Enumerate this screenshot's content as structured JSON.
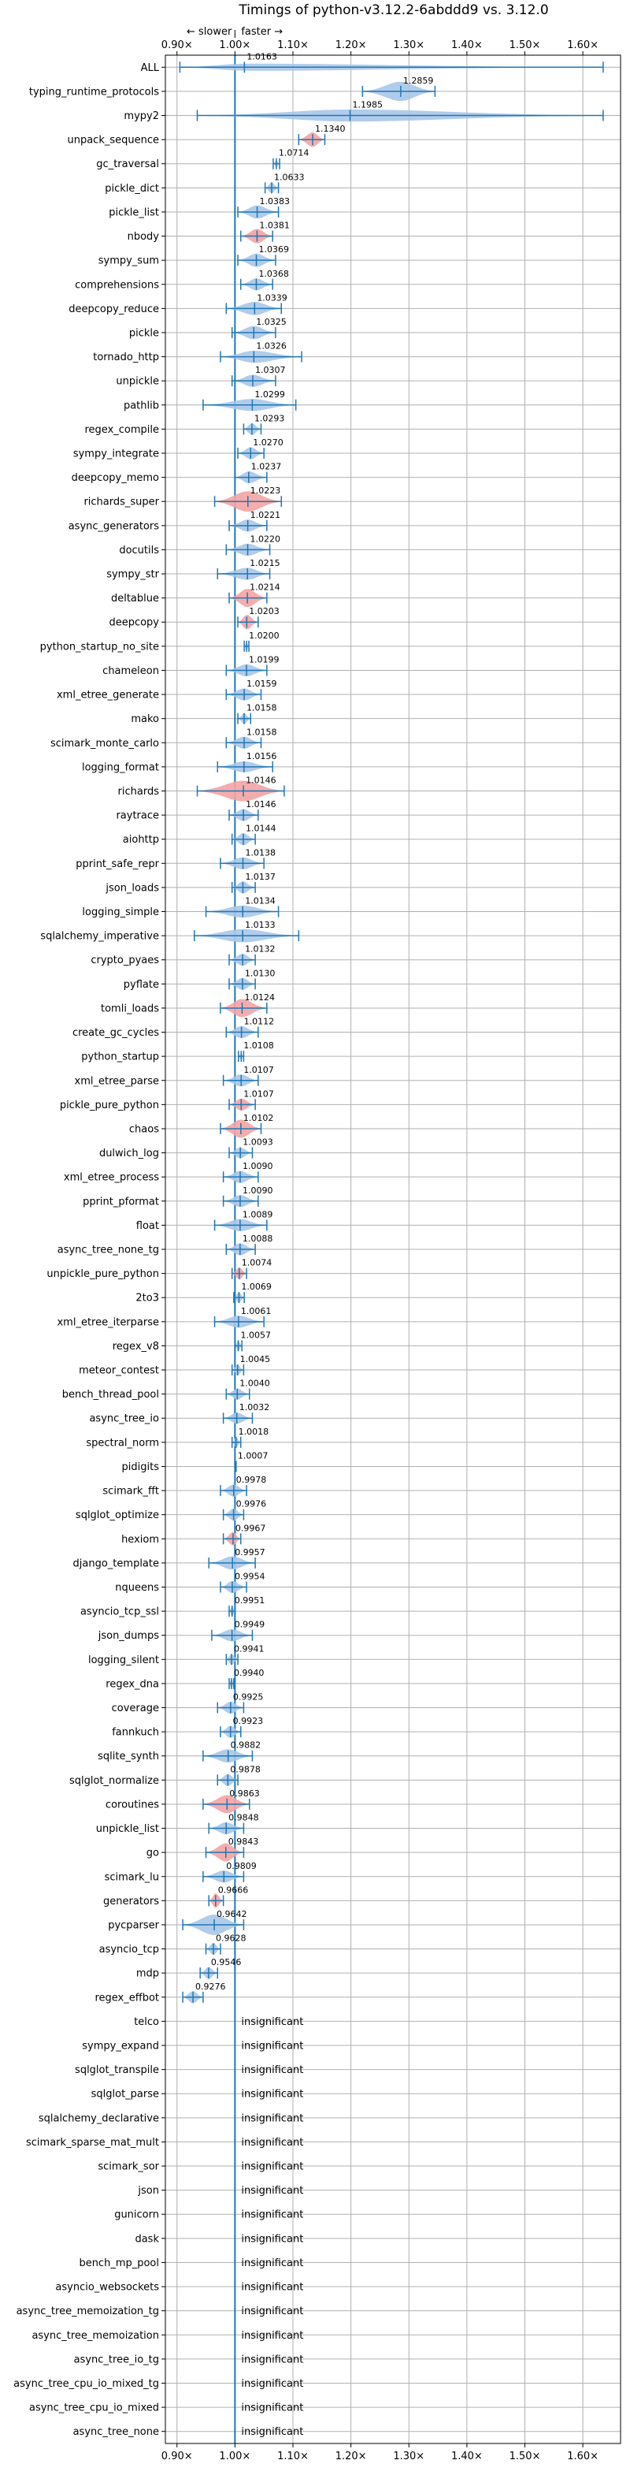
{
  "chart_data": {
    "type": "violin",
    "title": "Timings of python-v3.12.2-6abddd9 vs. 3.12.0",
    "direction_labels": {
      "slower": "← slower",
      "faster": "faster →"
    },
    "xlim": [
      0.88,
      1.665
    ],
    "xticks": [
      0.9,
      1.0,
      1.1,
      1.2,
      1.3,
      1.4,
      1.5,
      1.6
    ],
    "xtick_labels": [
      "0.90×",
      "1.00×",
      "1.10×",
      "1.20×",
      "1.30×",
      "1.40×",
      "1.50×",
      "1.60×"
    ],
    "grid": true,
    "reference_x": 1.0,
    "insignificant_label": "insignificant",
    "benchmarks": [
      {
        "name": "ALL",
        "label": "1.0163",
        "mean": 1.0163,
        "lo": 0.905,
        "hi": 1.635,
        "w": 0.3,
        "color": "blue"
      },
      {
        "name": "typing_runtime_protocols",
        "label": "1.2859",
        "mean": 1.2859,
        "lo": 1.22,
        "hi": 1.345,
        "w": 0.8,
        "color": "blue"
      },
      {
        "name": "mypy2",
        "label": "1.1985",
        "mean": 1.1985,
        "lo": 0.935,
        "hi": 1.635,
        "w": 0.5,
        "color": "blue"
      },
      {
        "name": "unpack_sequence",
        "label": "1.1340",
        "mean": 1.134,
        "lo": 1.11,
        "hi": 1.155,
        "w": 0.6,
        "color": "red"
      },
      {
        "name": "gc_traversal",
        "label": "1.0714",
        "mean": 1.0714,
        "lo": 1.066,
        "hi": 1.077,
        "w": 0.3,
        "color": "blue"
      },
      {
        "name": "pickle_dict",
        "label": "1.0633",
        "mean": 1.0633,
        "lo": 1.052,
        "hi": 1.075,
        "w": 0.45,
        "color": "blue"
      },
      {
        "name": "pickle_list",
        "label": "1.0383",
        "mean": 1.0383,
        "lo": 1.005,
        "hi": 1.075,
        "w": 0.55,
        "color": "blue"
      },
      {
        "name": "nbody",
        "label": "1.0381",
        "mean": 1.0381,
        "lo": 1.01,
        "hi": 1.065,
        "w": 0.6,
        "color": "red"
      },
      {
        "name": "sympy_sum",
        "label": "1.0369",
        "mean": 1.0369,
        "lo": 1.005,
        "hi": 1.07,
        "w": 0.55,
        "color": "blue"
      },
      {
        "name": "comprehensions",
        "label": "1.0368",
        "mean": 1.0368,
        "lo": 1.01,
        "hi": 1.065,
        "w": 0.5,
        "color": "blue"
      },
      {
        "name": "deepcopy_reduce",
        "label": "1.0339",
        "mean": 1.0339,
        "lo": 0.985,
        "hi": 1.08,
        "w": 0.55,
        "color": "blue"
      },
      {
        "name": "pickle",
        "label": "1.0325",
        "mean": 1.0325,
        "lo": 0.995,
        "hi": 1.07,
        "w": 0.55,
        "color": "blue"
      },
      {
        "name": "tornado_http",
        "label": "1.0326",
        "mean": 1.0326,
        "lo": 0.975,
        "hi": 1.115,
        "w": 0.5,
        "color": "blue"
      },
      {
        "name": "unpickle",
        "label": "1.0307",
        "mean": 1.0307,
        "lo": 0.995,
        "hi": 1.07,
        "w": 0.5,
        "color": "blue"
      },
      {
        "name": "pathlib",
        "label": "1.0299",
        "mean": 1.0299,
        "lo": 0.945,
        "hi": 1.105,
        "w": 0.5,
        "color": "blue"
      },
      {
        "name": "regex_compile",
        "label": "1.0293",
        "mean": 1.0293,
        "lo": 1.015,
        "hi": 1.045,
        "w": 0.5,
        "color": "blue"
      },
      {
        "name": "sympy_integrate",
        "label": "1.0270",
        "mean": 1.027,
        "lo": 1.005,
        "hi": 1.05,
        "w": 0.5,
        "color": "blue"
      },
      {
        "name": "deepcopy_memo",
        "label": "1.0237",
        "mean": 1.0237,
        "lo": 1.0,
        "hi": 1.055,
        "w": 0.5,
        "color": "blue"
      },
      {
        "name": "richards_super",
        "label": "1.0223",
        "mean": 1.0223,
        "lo": 0.965,
        "hi": 1.08,
        "w": 0.85,
        "color": "red"
      },
      {
        "name": "async_generators",
        "label": "1.0221",
        "mean": 1.0221,
        "lo": 0.99,
        "hi": 1.055,
        "w": 0.5,
        "color": "blue"
      },
      {
        "name": "docutils",
        "label": "1.0220",
        "mean": 1.022,
        "lo": 0.985,
        "hi": 1.06,
        "w": 0.5,
        "color": "blue"
      },
      {
        "name": "sympy_str",
        "label": "1.0215",
        "mean": 1.0215,
        "lo": 0.97,
        "hi": 1.06,
        "w": 0.5,
        "color": "blue"
      },
      {
        "name": "deltablue",
        "label": "1.0214",
        "mean": 1.0214,
        "lo": 0.99,
        "hi": 1.055,
        "w": 0.75,
        "color": "red"
      },
      {
        "name": "deepcopy",
        "label": "1.0203",
        "mean": 1.0203,
        "lo": 1.005,
        "hi": 1.04,
        "w": 0.6,
        "color": "red"
      },
      {
        "name": "python_startup_no_site",
        "label": "1.0200",
        "mean": 1.02,
        "lo": 1.016,
        "hi": 1.024,
        "w": 0.3,
        "color": "blue"
      },
      {
        "name": "chameleon",
        "label": "1.0199",
        "mean": 1.0199,
        "lo": 0.985,
        "hi": 1.055,
        "w": 0.5,
        "color": "blue"
      },
      {
        "name": "xml_etree_generate",
        "label": "1.0159",
        "mean": 1.0159,
        "lo": 0.985,
        "hi": 1.045,
        "w": 0.5,
        "color": "blue"
      },
      {
        "name": "mako",
        "label": "1.0158",
        "mean": 1.0158,
        "lo": 1.005,
        "hi": 1.027,
        "w": 0.45,
        "color": "blue"
      },
      {
        "name": "scimark_monte_carlo",
        "label": "1.0158",
        "mean": 1.0158,
        "lo": 0.985,
        "hi": 1.045,
        "w": 0.5,
        "color": "blue"
      },
      {
        "name": "logging_format",
        "label": "1.0156",
        "mean": 1.0156,
        "lo": 0.97,
        "hi": 1.065,
        "w": 0.45,
        "color": "blue"
      },
      {
        "name": "richards",
        "label": "1.0146",
        "mean": 1.0146,
        "lo": 0.935,
        "hi": 1.085,
        "w": 0.85,
        "color": "red"
      },
      {
        "name": "raytrace",
        "label": "1.0146",
        "mean": 1.0146,
        "lo": 0.99,
        "hi": 1.04,
        "w": 0.5,
        "color": "blue"
      },
      {
        "name": "aiohttp",
        "label": "1.0144",
        "mean": 1.0144,
        "lo": 0.995,
        "hi": 1.035,
        "w": 0.5,
        "color": "blue"
      },
      {
        "name": "pprint_safe_repr",
        "label": "1.0138",
        "mean": 1.0138,
        "lo": 0.975,
        "hi": 1.05,
        "w": 0.5,
        "color": "blue"
      },
      {
        "name": "json_loads",
        "label": "1.0137",
        "mean": 1.0137,
        "lo": 0.995,
        "hi": 1.035,
        "w": 0.5,
        "color": "blue"
      },
      {
        "name": "logging_simple",
        "label": "1.0134",
        "mean": 1.0134,
        "lo": 0.95,
        "hi": 1.075,
        "w": 0.5,
        "color": "blue"
      },
      {
        "name": "sqlalchemy_imperative",
        "label": "1.0133",
        "mean": 1.0133,
        "lo": 0.93,
        "hi": 1.11,
        "w": 0.55,
        "color": "blue"
      },
      {
        "name": "crypto_pyaes",
        "label": "1.0132",
        "mean": 1.0132,
        "lo": 0.99,
        "hi": 1.035,
        "w": 0.5,
        "color": "blue"
      },
      {
        "name": "pyflate",
        "label": "1.0130",
        "mean": 1.013,
        "lo": 0.99,
        "hi": 1.035,
        "w": 0.5,
        "color": "blue"
      },
      {
        "name": "tomli_loads",
        "label": "1.0124",
        "mean": 1.0124,
        "lo": 0.975,
        "hi": 1.055,
        "w": 0.75,
        "color": "red"
      },
      {
        "name": "create_gc_cycles",
        "label": "1.0112",
        "mean": 1.0112,
        "lo": 0.985,
        "hi": 1.04,
        "w": 0.5,
        "color": "blue"
      },
      {
        "name": "python_startup",
        "label": "1.0108",
        "mean": 1.0108,
        "lo": 1.006,
        "hi": 1.015,
        "w": 0.3,
        "color": "blue"
      },
      {
        "name": "xml_etree_parse",
        "label": "1.0107",
        "mean": 1.0107,
        "lo": 0.98,
        "hi": 1.04,
        "w": 0.5,
        "color": "blue"
      },
      {
        "name": "pickle_pure_python",
        "label": "1.0107",
        "mean": 1.0107,
        "lo": 0.99,
        "hi": 1.035,
        "w": 0.5,
        "color": "red"
      },
      {
        "name": "chaos",
        "label": "1.0102",
        "mean": 1.0102,
        "lo": 0.975,
        "hi": 1.045,
        "w": 0.75,
        "color": "red"
      },
      {
        "name": "dulwich_log",
        "label": "1.0093",
        "mean": 1.0093,
        "lo": 0.99,
        "hi": 1.03,
        "w": 0.45,
        "color": "blue"
      },
      {
        "name": "xml_etree_process",
        "label": "1.0090",
        "mean": 1.009,
        "lo": 0.98,
        "hi": 1.04,
        "w": 0.5,
        "color": "blue"
      },
      {
        "name": "pprint_pformat",
        "label": "1.0090",
        "mean": 1.009,
        "lo": 0.98,
        "hi": 1.04,
        "w": 0.5,
        "color": "blue"
      },
      {
        "name": "float",
        "label": "1.0089",
        "mean": 1.0089,
        "lo": 0.965,
        "hi": 1.055,
        "w": 0.5,
        "color": "blue"
      },
      {
        "name": "async_tree_none_tg",
        "label": "1.0088",
        "mean": 1.0088,
        "lo": 0.985,
        "hi": 1.035,
        "w": 0.5,
        "color": "blue"
      },
      {
        "name": "unpickle_pure_python",
        "label": "1.0074",
        "mean": 1.0074,
        "lo": 0.995,
        "hi": 1.02,
        "w": 0.5,
        "color": "red"
      },
      {
        "name": "2to3",
        "label": "1.0069",
        "mean": 1.0069,
        "lo": 0.998,
        "hi": 1.016,
        "w": 0.45,
        "color": "blue"
      },
      {
        "name": "xml_etree_iterparse",
        "label": "1.0061",
        "mean": 1.0061,
        "lo": 0.965,
        "hi": 1.05,
        "w": 0.5,
        "color": "blue"
      },
      {
        "name": "regex_v8",
        "label": "1.0057",
        "mean": 1.0057,
        "lo": 1.0,
        "hi": 1.012,
        "w": 0.45,
        "color": "blue"
      },
      {
        "name": "meteor_contest",
        "label": "1.0045",
        "mean": 1.0045,
        "lo": 0.995,
        "hi": 1.015,
        "w": 0.45,
        "color": "blue"
      },
      {
        "name": "bench_thread_pool",
        "label": "1.0040",
        "mean": 1.004,
        "lo": 0.985,
        "hi": 1.025,
        "w": 0.45,
        "color": "blue"
      },
      {
        "name": "async_tree_io",
        "label": "1.0032",
        "mean": 1.0032,
        "lo": 0.98,
        "hi": 1.03,
        "w": 0.45,
        "color": "blue"
      },
      {
        "name": "spectral_norm",
        "label": "1.0018",
        "mean": 1.0018,
        "lo": 0.995,
        "hi": 1.01,
        "w": 0.45,
        "color": "blue"
      },
      {
        "name": "pidigits",
        "label": "1.0007",
        "mean": 1.0007,
        "lo": 1.0,
        "hi": 1.002,
        "w": 0.2,
        "color": "blue"
      },
      {
        "name": "scimark_fft",
        "label": "0.9978",
        "mean": 0.9978,
        "lo": 0.975,
        "hi": 1.02,
        "w": 0.5,
        "color": "blue"
      },
      {
        "name": "sqlglot_optimize",
        "label": "0.9976",
        "mean": 0.9976,
        "lo": 0.98,
        "hi": 1.015,
        "w": 0.5,
        "color": "blue"
      },
      {
        "name": "hexiom",
        "label": "0.9967",
        "mean": 0.9967,
        "lo": 0.98,
        "hi": 1.01,
        "w": 0.55,
        "color": "red"
      },
      {
        "name": "django_template",
        "label": "0.9957",
        "mean": 0.9957,
        "lo": 0.955,
        "hi": 1.035,
        "w": 0.55,
        "color": "blue"
      },
      {
        "name": "nqueens",
        "label": "0.9954",
        "mean": 0.9954,
        "lo": 0.975,
        "hi": 1.02,
        "w": 0.5,
        "color": "blue"
      },
      {
        "name": "asyncio_tcp_ssl",
        "label": "0.9951",
        "mean": 0.9951,
        "lo": 0.99,
        "hi": 1.0,
        "w": 0.45,
        "color": "blue"
      },
      {
        "name": "json_dumps",
        "label": "0.9949",
        "mean": 0.9949,
        "lo": 0.96,
        "hi": 1.03,
        "w": 0.5,
        "color": "blue"
      },
      {
        "name": "logging_silent",
        "label": "0.9941",
        "mean": 0.9941,
        "lo": 0.985,
        "hi": 1.005,
        "w": 0.45,
        "color": "blue"
      },
      {
        "name": "regex_dna",
        "label": "0.9940",
        "mean": 0.994,
        "lo": 0.99,
        "hi": 0.998,
        "w": 0.45,
        "color": "blue"
      },
      {
        "name": "coverage",
        "label": "0.9925",
        "mean": 0.9925,
        "lo": 0.97,
        "hi": 1.015,
        "w": 0.5,
        "color": "blue"
      },
      {
        "name": "fannkuch",
        "label": "0.9923",
        "mean": 0.9923,
        "lo": 0.975,
        "hi": 1.01,
        "w": 0.5,
        "color": "blue"
      },
      {
        "name": "sqlite_synth",
        "label": "0.9882",
        "mean": 0.9882,
        "lo": 0.945,
        "hi": 1.03,
        "w": 0.55,
        "color": "blue"
      },
      {
        "name": "sqlglot_normalize",
        "label": "0.9878",
        "mean": 0.9878,
        "lo": 0.97,
        "hi": 1.005,
        "w": 0.5,
        "color": "blue"
      },
      {
        "name": "coroutines",
        "label": "0.9863",
        "mean": 0.9863,
        "lo": 0.945,
        "hi": 1.025,
        "w": 0.75,
        "color": "red"
      },
      {
        "name": "unpickle_list",
        "label": "0.9848",
        "mean": 0.9848,
        "lo": 0.955,
        "hi": 1.015,
        "w": 0.5,
        "color": "blue"
      },
      {
        "name": "go",
        "label": "0.9843",
        "mean": 0.9843,
        "lo": 0.95,
        "hi": 1.015,
        "w": 0.75,
        "color": "red"
      },
      {
        "name": "scimark_lu",
        "label": "0.9809",
        "mean": 0.9809,
        "lo": 0.945,
        "hi": 1.015,
        "w": 0.5,
        "color": "blue"
      },
      {
        "name": "generators",
        "label": "0.9666",
        "mean": 0.9666,
        "lo": 0.955,
        "hi": 0.98,
        "w": 0.6,
        "color": "red"
      },
      {
        "name": "pycparser",
        "label": "0.9642",
        "mean": 0.9642,
        "lo": 0.91,
        "hi": 1.015,
        "w": 0.85,
        "color": "blue"
      },
      {
        "name": "asyncio_tcp",
        "label": "0.9628",
        "mean": 0.9628,
        "lo": 0.95,
        "hi": 0.975,
        "w": 0.5,
        "color": "blue"
      },
      {
        "name": "mdp",
        "label": "0.9546",
        "mean": 0.9546,
        "lo": 0.94,
        "hi": 0.97,
        "w": 0.5,
        "color": "blue"
      },
      {
        "name": "regex_effbot",
        "label": "0.9276",
        "mean": 0.9276,
        "lo": 0.91,
        "hi": 0.945,
        "w": 0.5,
        "color": "blue"
      },
      {
        "name": "telco",
        "label": "insignificant",
        "mean": null
      },
      {
        "name": "sympy_expand",
        "label": "insignificant",
        "mean": null
      },
      {
        "name": "sqlglot_transpile",
        "label": "insignificant",
        "mean": null
      },
      {
        "name": "sqlglot_parse",
        "label": "insignificant",
        "mean": null
      },
      {
        "name": "sqlalchemy_declarative",
        "label": "insignificant",
        "mean": null
      },
      {
        "name": "scimark_sparse_mat_mult",
        "label": "insignificant",
        "mean": null
      },
      {
        "name": "scimark_sor",
        "label": "insignificant",
        "mean": null
      },
      {
        "name": "json",
        "label": "insignificant",
        "mean": null
      },
      {
        "name": "gunicorn",
        "label": "insignificant",
        "mean": null
      },
      {
        "name": "dask",
        "label": "insignificant",
        "mean": null
      },
      {
        "name": "bench_mp_pool",
        "label": "insignificant",
        "mean": null
      },
      {
        "name": "asyncio_websockets",
        "label": "insignificant",
        "mean": null
      },
      {
        "name": "async_tree_memoization_tg",
        "label": "insignificant",
        "mean": null
      },
      {
        "name": "async_tree_memoization",
        "label": "insignificant",
        "mean": null
      },
      {
        "name": "async_tree_io_tg",
        "label": "insignificant",
        "mean": null
      },
      {
        "name": "async_tree_cpu_io_mixed_tg",
        "label": "insignificant",
        "mean": null
      },
      {
        "name": "async_tree_cpu_io_mixed",
        "label": "insignificant",
        "mean": null
      },
      {
        "name": "async_tree_none",
        "label": "insignificant",
        "mean": null
      }
    ]
  },
  "colors": {
    "blue_fill": "#a9c6e8",
    "red_fill": "#f4a3a3",
    "line": "#1f77b4",
    "grid": "#b0b0b0"
  }
}
